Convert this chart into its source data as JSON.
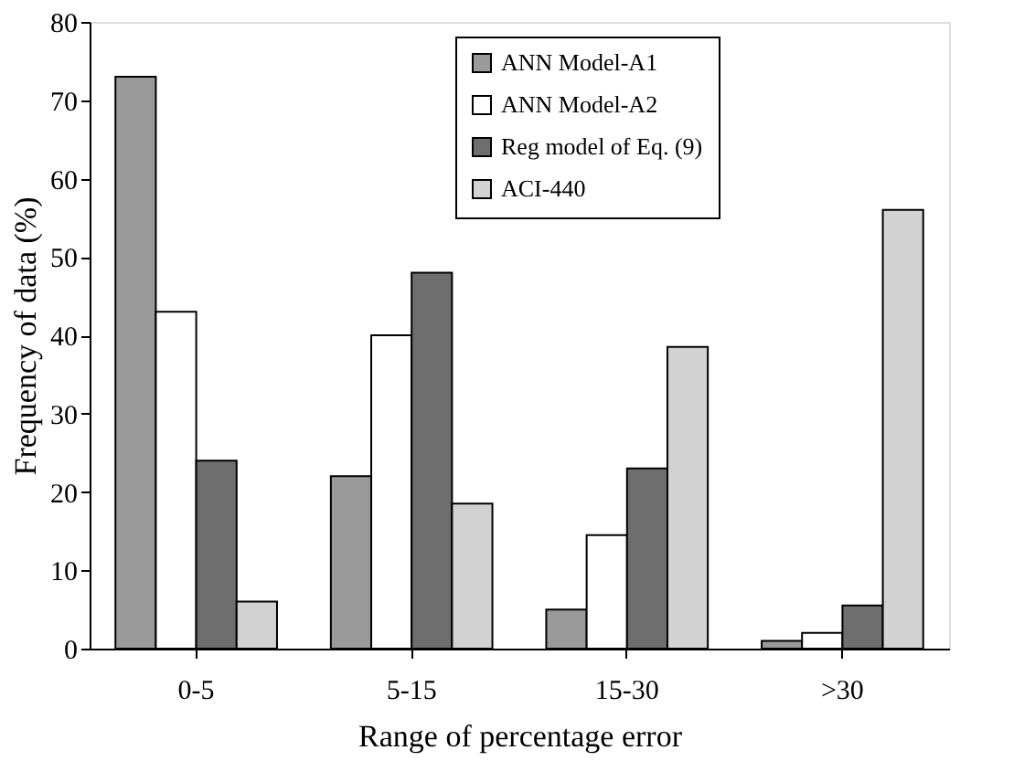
{
  "chart_data": {
    "type": "bar",
    "xlabel": "Range of percentage error",
    "ylabel": "Frequency of data (%)",
    "categories": [
      "0-5",
      "5-15",
      "15-30",
      ">30"
    ],
    "series": [
      {
        "name": "ANN Model-A1",
        "color": "#9a9a9a",
        "values": [
          73,
          22,
          5,
          1
        ]
      },
      {
        "name": "ANN Model-A2",
        "color": "#ffffff",
        "values": [
          43,
          40,
          14.5,
          2
        ]
      },
      {
        "name": "Reg model of Eq. (9)",
        "color": "#6e6e6e",
        "values": [
          24,
          48,
          23,
          5.5
        ]
      },
      {
        "name": "ACI-440",
        "color": "#d2d2d2",
        "values": [
          6,
          18.5,
          38.5,
          56
        ]
      }
    ],
    "ylim": [
      0,
      80
    ],
    "yticks": [
      0,
      10,
      20,
      30,
      40,
      50,
      60,
      70,
      80
    ],
    "grid": false,
    "legend": "top right"
  }
}
